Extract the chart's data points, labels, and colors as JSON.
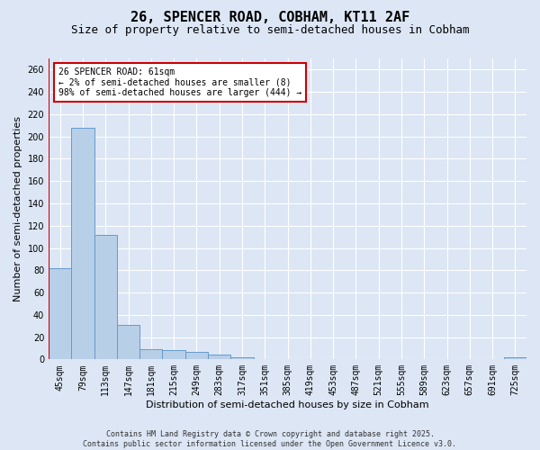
{
  "title_line1": "26, SPENCER ROAD, COBHAM, KT11 2AF",
  "title_line2": "Size of property relative to semi-detached houses in Cobham",
  "xlabel": "Distribution of semi-detached houses by size in Cobham",
  "ylabel": "Number of semi-detached properties",
  "footer_line1": "Contains HM Land Registry data © Crown copyright and database right 2025.",
  "footer_line2": "Contains public sector information licensed under the Open Government Licence v3.0.",
  "categories": [
    "45sqm",
    "79sqm",
    "113sqm",
    "147sqm",
    "181sqm",
    "215sqm",
    "249sqm",
    "283sqm",
    "317sqm",
    "351sqm",
    "385sqm",
    "419sqm",
    "453sqm",
    "487sqm",
    "521sqm",
    "555sqm",
    "589sqm",
    "623sqm",
    "657sqm",
    "691sqm",
    "725sqm"
  ],
  "values": [
    82,
    208,
    112,
    31,
    9,
    8,
    7,
    4,
    2,
    0,
    0,
    0,
    0,
    0,
    0,
    0,
    0,
    0,
    0,
    0,
    2
  ],
  "bar_color": "#b8cfe8",
  "bar_edge_color": "#6699cc",
  "highlight_color": "#cc0000",
  "annotation_text": "26 SPENCER ROAD: 61sqm\n← 2% of semi-detached houses are smaller (8)\n98% of semi-detached houses are larger (444) →",
  "annotation_box_color": "#cc0000",
  "ylim": [
    0,
    270
  ],
  "yticks": [
    0,
    20,
    40,
    60,
    80,
    100,
    120,
    140,
    160,
    180,
    200,
    220,
    240,
    260
  ],
  "bg_color": "#dce6f5",
  "plot_bg_color": "#dce6f5",
  "grid_color": "#ffffff",
  "title_fontsize": 11,
  "subtitle_fontsize": 9,
  "axis_label_fontsize": 8,
  "tick_fontsize": 7,
  "footer_fontsize": 6,
  "annotation_fontsize": 7
}
